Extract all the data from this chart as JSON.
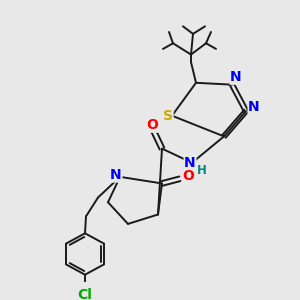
{
  "bg_color": "#e8e8e8",
  "bond_color": "#1a1a1a",
  "atom_colors": {
    "O": "#ff0000",
    "N": "#0000ee",
    "S": "#ccaa00",
    "Cl": "#00aa00",
    "H": "#008888"
  },
  "line_width": 1.4,
  "font_size": 9.5
}
